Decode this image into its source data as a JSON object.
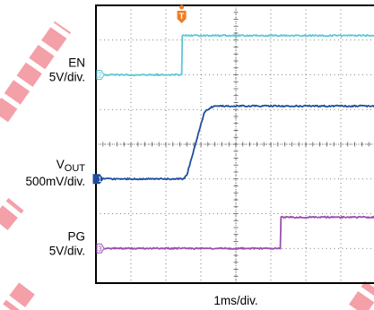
{
  "chart_data": {
    "type": "line",
    "x_division_label": "1ms/div.",
    "x_divisions": 8,
    "y_divisions": 8,
    "x_range_div": [
      0,
      8
    ],
    "y_range_div": [
      -4,
      4
    ],
    "grid": true,
    "series": [
      {
        "name": "EN",
        "scale": "5V/div.",
        "channel_marker": "2",
        "color": "#5cc8d4",
        "x": [
          0,
          2.45,
          2.47,
          8
        ],
        "y": [
          2.0,
          2.0,
          3.13,
          3.13
        ]
      },
      {
        "name": "VOUT",
        "name_main": "V",
        "name_sub": "OUT",
        "scale": "500mV/div.",
        "channel_marker": "1",
        "color": "#1f4e9c",
        "x": [
          0,
          2.5,
          2.6,
          3.1,
          3.3,
          3.45,
          8
        ],
        "y": [
          -1.0,
          -1.0,
          -0.88,
          0.93,
          1.07,
          1.1,
          1.1
        ]
      },
      {
        "name": "PG",
        "scale": "5V/div.",
        "channel_marker": "3",
        "color": "#9a4fb0",
        "x": [
          0,
          5.27,
          5.29,
          8
        ],
        "y": [
          -3.0,
          -3.0,
          -2.1,
          -2.1
        ]
      }
    ],
    "trigger_marker": "T",
    "trigger_x_div": 2.45,
    "colors": {
      "trigger": "#ef7d22",
      "watermark": "#f4a0a8",
      "grid": "#555555"
    }
  }
}
